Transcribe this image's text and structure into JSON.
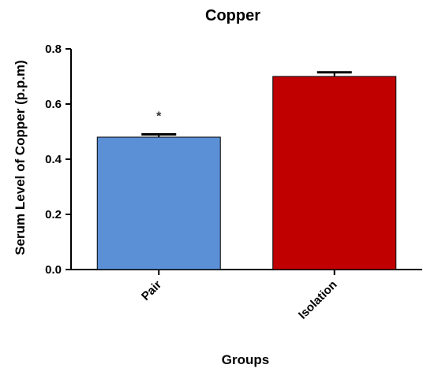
{
  "chart_data": {
    "type": "bar",
    "title": "Copper",
    "xlabel": "Groups",
    "ylabel": "Serum Level of Copper (p.p.m)",
    "categories": [
      "Pair",
      "Isolation"
    ],
    "values": [
      0.48,
      0.7
    ],
    "error": [
      0.01,
      0.015
    ],
    "annotations": [
      "*",
      ""
    ],
    "colors": [
      "#5b8fd6",
      "#c00000"
    ],
    "ylim": [
      0.0,
      0.8
    ],
    "yticks": [
      "0.0",
      "0.2",
      "0.4",
      "0.6",
      "0.8"
    ],
    "grid": false
  }
}
